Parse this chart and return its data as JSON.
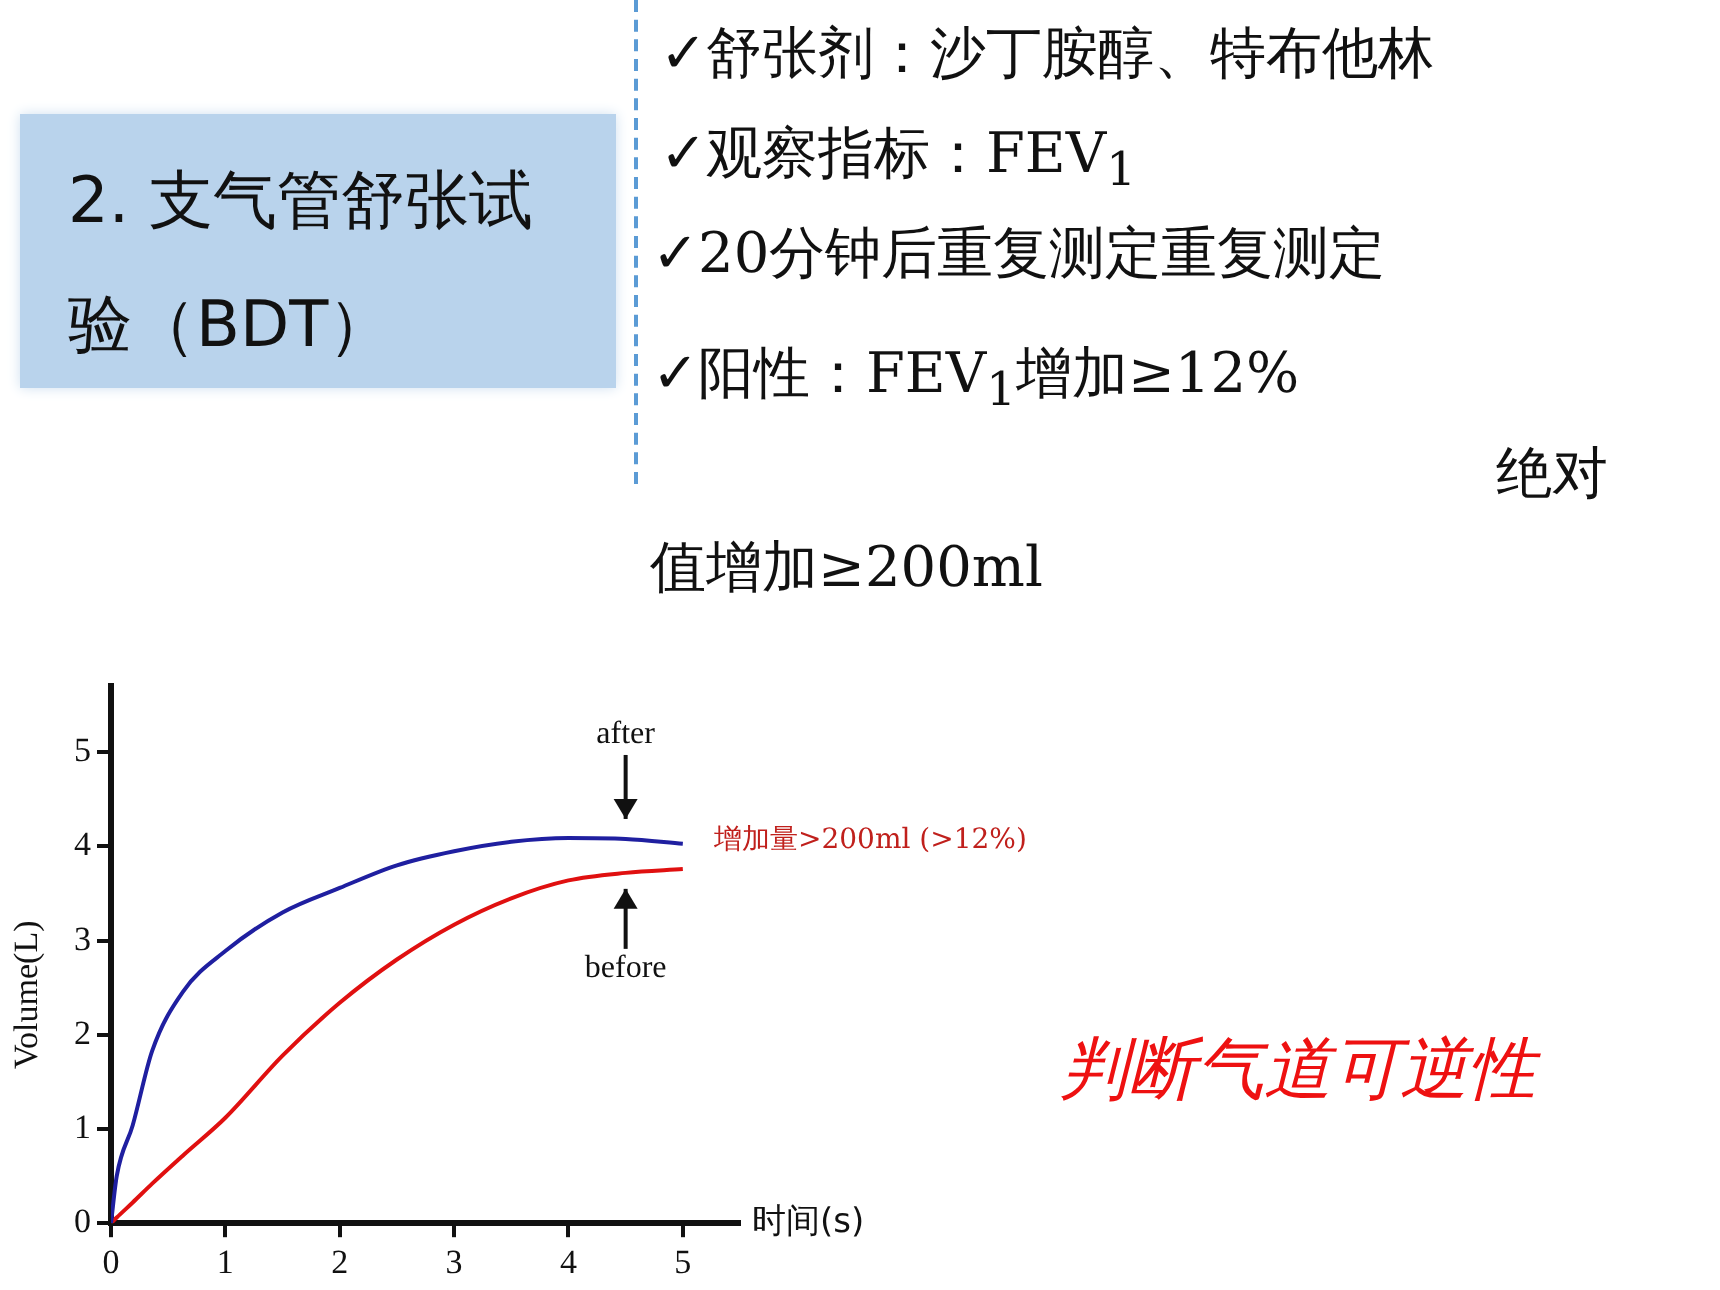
{
  "chart_data": {
    "type": "line",
    "title": "2. 支气管舒张试验（BDT）",
    "xlabel": "时间(s)",
    "ylabel": "Volume(L)",
    "x": [
      0,
      0.05,
      0.19,
      0.36,
      0.63,
      1,
      1.5,
      2,
      2.5,
      3,
      3.5,
      4,
      4.5,
      5
    ],
    "series": [
      {
        "name": "after",
        "color": "#1f1fa0",
        "values": [
          0,
          0.5,
          1.04,
          1.83,
          2.46,
          2.89,
          3.3,
          3.56,
          3.8,
          3.95,
          4.05,
          4.09,
          4.08,
          4.03
        ]
      },
      {
        "name": "before",
        "color": "#e01010",
        "values": [
          0,
          0.06,
          0.22,
          0.42,
          0.72,
          1.12,
          1.78,
          2.34,
          2.8,
          3.17,
          3.45,
          3.64,
          3.72,
          3.76
        ]
      }
    ],
    "xlim": [
      0,
      5.5
    ],
    "xticks": [
      0,
      1,
      2,
      3,
      4,
      5
    ],
    "ylim": [
      0,
      5.7
    ],
    "yticks": [
      0,
      1,
      2,
      3,
      4,
      5
    ],
    "grid": false,
    "legend": false,
    "marker": "none",
    "line_style": "solid",
    "annotations": [
      "增加量>200ml (>12%)",
      "✓舒张剂：沙丁胺醇、特布他林",
      "✓观察指标：FEV$_{1}$",
      "✓20分钟后重复测定重复测定",
      "✓阳性：FEV$_{1}$增加≥12%",
      "绝对",
      "值增加≥200ml",
      "判断气道可逆性"
    ]
  }
}
